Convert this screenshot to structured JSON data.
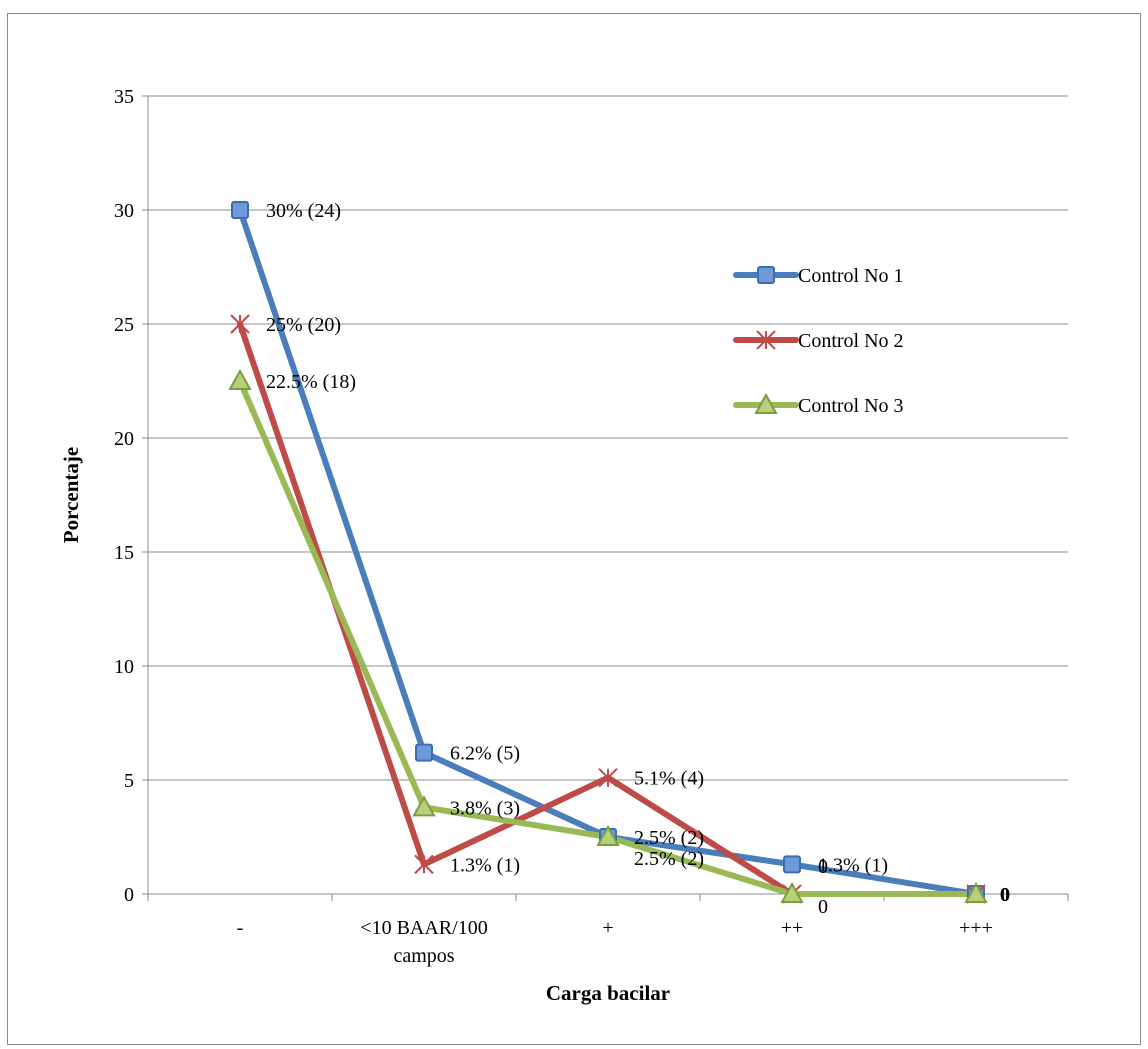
{
  "chart_data": {
    "type": "line",
    "xlabel": "Carga bacilar",
    "ylabel": "Porcentaje",
    "ylim": [
      0,
      35
    ],
    "yticks": [
      0,
      5,
      10,
      15,
      20,
      25,
      30,
      35
    ],
    "grid": true,
    "legend_position": "right",
    "categories": [
      [
        "-"
      ],
      [
        "<10 BAAR/100",
        "campos"
      ],
      [
        "+"
      ],
      [
        "++"
      ],
      [
        "+++"
      ]
    ],
    "series": [
      {
        "name": "Control No 1",
        "color": "#4a7ebb",
        "marker": "square",
        "values": [
          30,
          6.2,
          2.5,
          1.3,
          0
        ],
        "labels": [
          "30% (24)",
          "6.2% (5)",
          "2.5% (2)",
          "1.3% (1)",
          "0"
        ]
      },
      {
        "name": "Control No 2",
        "color": "#be4b48",
        "marker": "star",
        "values": [
          25,
          1.3,
          5.1,
          0,
          0
        ],
        "labels": [
          "25% (20)",
          "1.3% (1)",
          "5.1% (4)",
          "0",
          "0"
        ]
      },
      {
        "name": "Control No 3",
        "color": "#98b954",
        "marker": "triangle",
        "values": [
          22.5,
          3.8,
          2.5,
          0,
          0
        ],
        "labels": [
          "22.5% (18)",
          "3.8% (3)",
          "2.5% (2)",
          "0",
          "0"
        ]
      }
    ]
  }
}
